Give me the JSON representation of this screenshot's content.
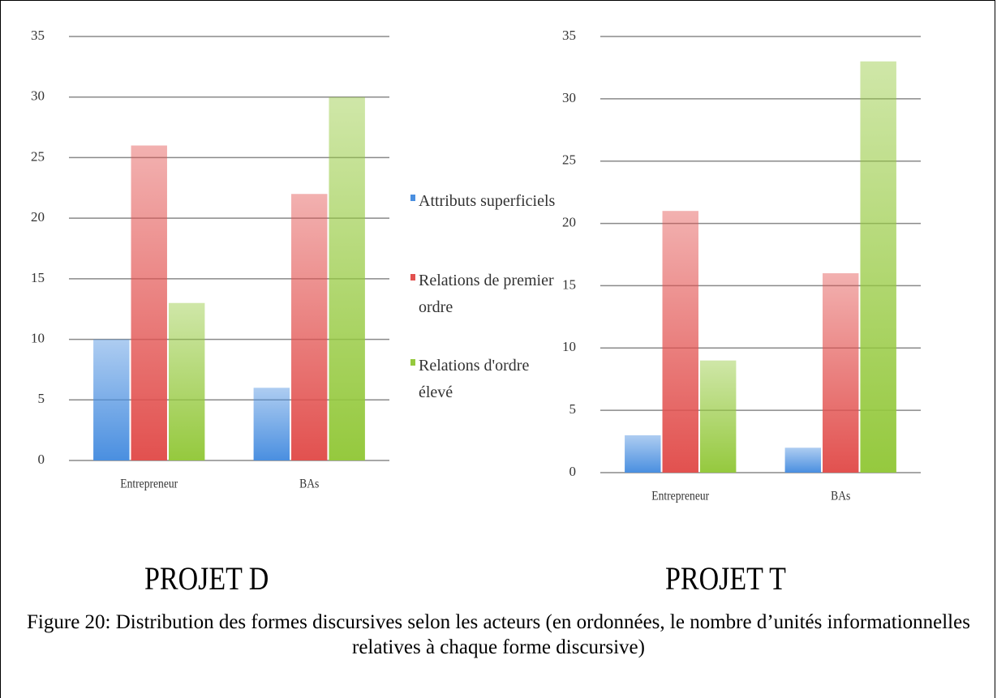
{
  "chart_data": [
    {
      "type": "bar",
      "title": "PROJET D",
      "categories": [
        "Entrepreneur",
        "BAs"
      ],
      "series": [
        {
          "name": "Attributs superficiels",
          "color": "#4a8fe0",
          "values": [
            10,
            6
          ]
        },
        {
          "name": "Relations de premier ordre",
          "color": "#e2514f",
          "values": [
            26,
            22
          ]
        },
        {
          "name": "Relations d'ordre élevé",
          "color": "#95c93e",
          "values": [
            13,
            30
          ]
        }
      ],
      "ylim": [
        0,
        35
      ],
      "yticks": [
        0,
        5,
        10,
        15,
        20,
        25,
        30,
        35
      ],
      "grid": true
    },
    {
      "type": "bar",
      "title": "PROJET T",
      "categories": [
        "Entrepreneur",
        "BAs"
      ],
      "series": [
        {
          "color": "#4a8fe0",
          "values": [
            3,
            2
          ]
        },
        {
          "color": "#e2514f",
          "values": [
            21,
            16
          ]
        },
        {
          "color": "#95c93e",
          "values": [
            9,
            33
          ]
        }
      ],
      "ylim": [
        0,
        35
      ],
      "yticks": [
        0,
        5,
        10,
        15,
        20,
        25,
        30,
        35
      ],
      "grid": true
    }
  ],
  "caption": "Figure 20: Distribution des formes discursives selon les acteurs (en ordonnées, le nombre d’unités informationnelles relatives à chaque forme discursive)"
}
